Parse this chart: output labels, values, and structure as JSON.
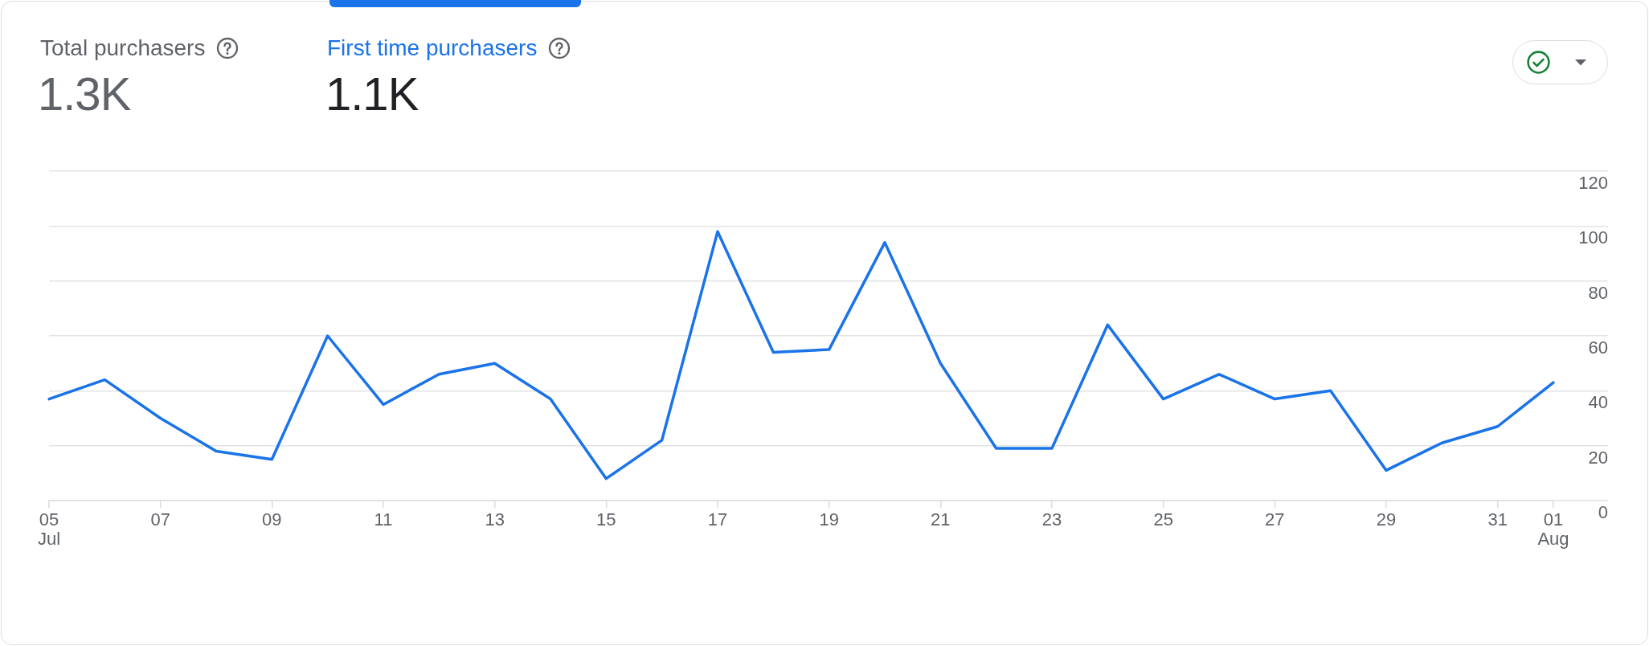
{
  "chart_data": {
    "type": "line",
    "title": "First time purchasers",
    "subtitle": "1.1K",
    "annotations": [
      "Total purchasers",
      "1.3K"
    ],
    "categories": [
      "05\nJul",
      null,
      "07",
      null,
      "09",
      null,
      "11",
      null,
      "13",
      null,
      "15",
      null,
      "17",
      null,
      "19",
      null,
      "21",
      null,
      "23",
      null,
      "25",
      null,
      "27",
      null,
      "29",
      null,
      "31",
      "01\nAug"
    ],
    "series": [
      {
        "color": "#1a73e8",
        "values": [
          37,
          44,
          30,
          18,
          15,
          60,
          35,
          46,
          50,
          37,
          8,
          22,
          98,
          54,
          55,
          94,
          50,
          19,
          19,
          64,
          37,
          46,
          37,
          40,
          11,
          21,
          27,
          43
        ]
      }
    ],
    "ylim": [
      0,
      120
    ],
    "yticks": [
      0,
      20,
      40,
      60,
      80,
      100,
      120
    ],
    "grid": "y",
    "marker": "none",
    "line_style": "solid"
  }
}
